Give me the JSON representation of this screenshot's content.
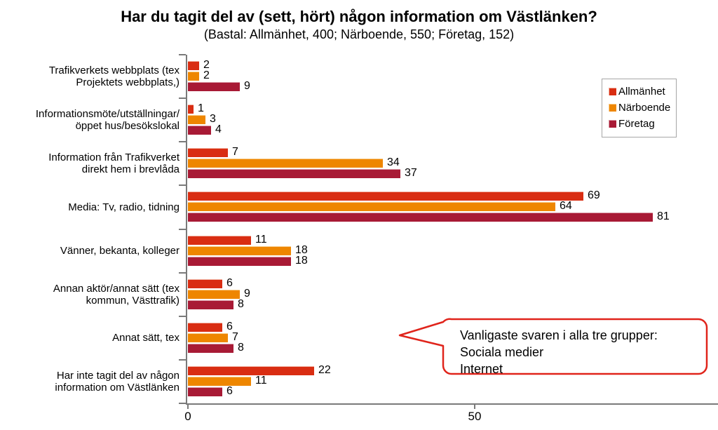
{
  "title": "Har du tagit del av (sett, hört) någon information om Västlänken?",
  "subtitle": "(Bastal: Allmänhet, 400; Närboende, 550; Företag, 152)",
  "chart_data": {
    "type": "bar",
    "orientation": "horizontal",
    "title": "Har du tagit del av (sett, hört) någon information om Västlänken?",
    "subtitle": "(Bastal: Allmänhet, 400; Närboende, 550; Företag, 152)",
    "categories": [
      "Trafikverkets webbplats (tex\nProjektets webbplats,)",
      "Informationsmöte/utställningar/\nöppet hus/besökslokal",
      "Information från Trafikverket\ndirekt hem i brevlåda",
      "Media: Tv, radio, tidning",
      "Vänner, bekanta, kolleger",
      "Annan aktör/annat sätt (tex\nkommun, Västtrafik)",
      "Annat sätt, tex",
      "Har inte tagit del av någon\ninformation om Västlänken"
    ],
    "series": [
      {
        "name": "Allmänhet",
        "color": "#d92d12",
        "edge_color": "#f2b3a3",
        "values": [
          2,
          1,
          7,
          69,
          11,
          6,
          6,
          22
        ]
      },
      {
        "name": "Närboende",
        "color": "#ee8600",
        "edge_color": "#f8cd8e",
        "values": [
          2,
          3,
          34,
          64,
          18,
          9,
          7,
          11
        ]
      },
      {
        "name": "Företag",
        "color": "#a81a35",
        "edge_color": "#d898a3",
        "values": [
          9,
          4,
          37,
          81,
          18,
          8,
          8,
          6
        ]
      }
    ],
    "x_ticks": [
      0,
      50
    ],
    "xlim": [
      0,
      92.5
    ],
    "grid": false,
    "value_labels": true,
    "legend_position": "upper-right",
    "axis_color": "#7a7a7a"
  },
  "callout": {
    "text": "Vanligaste svaren i alla tre grupper:\nSociala medier\nInternet",
    "border_color": "#e0241b"
  }
}
